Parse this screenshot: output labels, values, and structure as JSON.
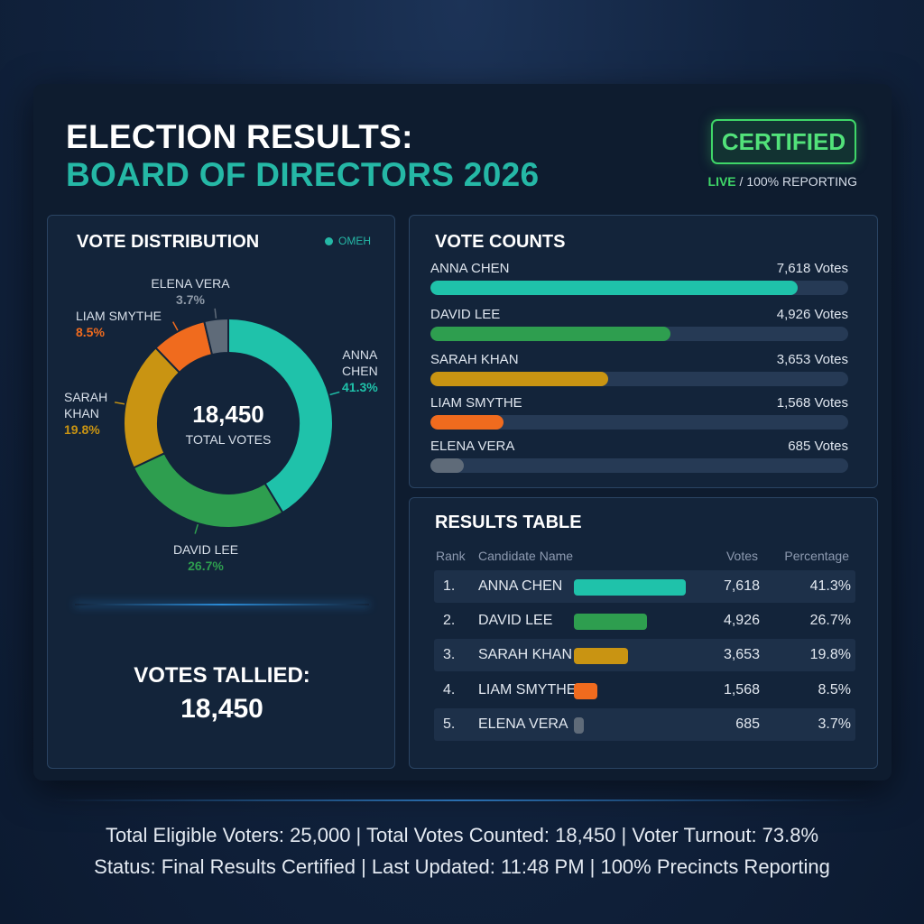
{
  "header": {
    "title_line1": "ELECTION RESULTS:",
    "title_line2": "BOARD OF DIRECTORS 2026",
    "badge": "CERTIFIED",
    "status_live": "LIVE",
    "status_rest": " / 100% REPORTING"
  },
  "distribution": {
    "title": "VOTE DISTRIBUTION",
    "legend": "OMEH",
    "total": "18,450",
    "total_caption": "TOTAL VOTES",
    "tallied_label": "VOTES TALLIED:",
    "tallied_value": "18,450",
    "labels": [
      {
        "name_lines": [
          "ANNA",
          "CHEN"
        ],
        "pct": "41.3%"
      },
      {
        "name_lines": [
          "DAVID LEE"
        ],
        "pct": "26.7%"
      },
      {
        "name_lines": [
          "SARAH",
          "KHAN"
        ],
        "pct": "19.8%"
      },
      {
        "name_lines": [
          "LIAM SMYTHE"
        ],
        "pct": "8.5%"
      },
      {
        "name_lines": [
          "ELENA VERA"
        ],
        "pct": "3.7%"
      }
    ]
  },
  "counts": {
    "title": "VOTE COUNTS",
    "rows": [
      {
        "name": "ANNA CHEN",
        "votes_label": "7,618 Votes",
        "fill": 0.88
      },
      {
        "name": "DAVID LEE",
        "votes_label": "4,926 Votes",
        "fill": 0.575
      },
      {
        "name": "SARAH KHAN",
        "votes_label": "3,653 Votes",
        "fill": 0.425
      },
      {
        "name": "LIAM SMYTHE",
        "votes_label": "1,568 Votes",
        "fill": 0.175
      },
      {
        "name": "ELENA VERA",
        "votes_label": "685 Votes",
        "fill": 0.08
      }
    ]
  },
  "table": {
    "title": "RESULTS TABLE",
    "headers": {
      "rank": "Rank",
      "name": "Candidate Name",
      "votes": "Votes",
      "pct": "Percentage"
    },
    "rows": [
      {
        "rank": "1.",
        "name": "ANNA CHEN",
        "votes": "7,618",
        "pct": "41.3%",
        "bar": 1.0
      },
      {
        "rank": "2.",
        "name": "DAVID LEE",
        "votes": "4,926",
        "pct": "26.7%",
        "bar": 0.65
      },
      {
        "rank": "3.",
        "name": "SARAH KHAN",
        "votes": "3,653",
        "pct": "19.8%",
        "bar": 0.48
      },
      {
        "rank": "4.",
        "name": "LIAM SMYTHE",
        "votes": "1,568",
        "pct": "8.5%",
        "bar": 0.21
      },
      {
        "rank": "5.",
        "name": "ELENA VERA",
        "votes": "685",
        "pct": "3.7%",
        "bar": 0.09
      }
    ]
  },
  "colors": {
    "anna": "#1fc2aa",
    "david": "#2e9e4f",
    "sarah": "#c99412",
    "liam": "#f06b1e",
    "elena": "#5f6b79"
  },
  "footer": {
    "line1": "Total Eligible Voters: 25,000  |  Total Votes Counted: 18,450  |  Voter Turnout: 73.8%",
    "line2": "Status: Final Results Certified  |  Last Updated: 11:48 PM  |  100% Precincts Reporting"
  },
  "chart_data": {
    "type": "pie",
    "categories": [
      "ANNA CHEN",
      "DAVID LEE",
      "SARAH KHAN",
      "LIAM SMYTHE",
      "ELENA VERA"
    ],
    "values": [
      41.3,
      26.7,
      19.8,
      8.5,
      3.7
    ],
    "title": "VOTE DISTRIBUTION"
  }
}
